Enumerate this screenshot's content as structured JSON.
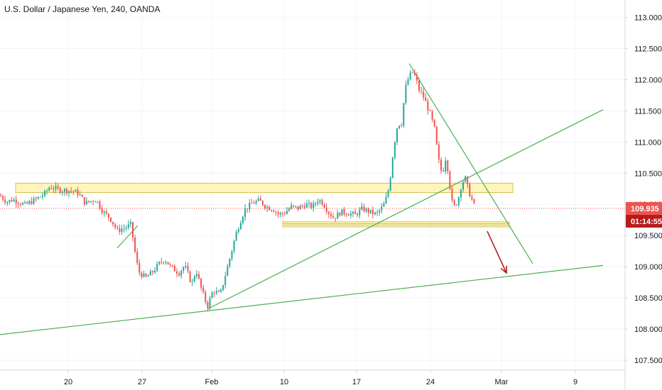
{
  "chart_data": {
    "type": "candlestick",
    "title": "U.S. Dollar / Japanese Yen, 240, OANDA",
    "y_axis": {
      "ylim": [
        107.34,
        113.28
      ],
      "ticks": [
        "113.000",
        "112.500",
        "112.000",
        "111.500",
        "111.000",
        "110.500",
        "110.000",
        "109.500",
        "109.000",
        "108.500",
        "108.000",
        "107.500"
      ],
      "tick_values": [
        113.0,
        112.5,
        112.0,
        111.5,
        111.0,
        110.5,
        110.0,
        109.5,
        109.0,
        108.5,
        108.0,
        107.5
      ],
      "position": "right"
    },
    "x_axis": {
      "labels": [
        "20",
        "27",
        "Feb",
        "10",
        "17",
        "24",
        "Mar",
        "9"
      ],
      "label_bars": [
        96,
        200,
        298,
        400,
        502,
        606,
        706,
        810
      ]
    },
    "current_price": {
      "price_label": "109.935",
      "countdown_label": "01:14:55",
      "value": 109.935
    },
    "colors": {
      "up": "#26a69a",
      "down": "#ef5350",
      "trendline": "#4caf50",
      "zone_fill": "#fff3b0",
      "zone_border": "#d4c24a",
      "arrow": "#b71c1c",
      "current_price_line": "#ef5350",
      "countdown_badge": "#b71c1c"
    },
    "anchors": [
      [
        0,
        110.14
      ],
      [
        10,
        110.04
      ],
      [
        18,
        110.08
      ],
      [
        35,
        109.99
      ],
      [
        50,
        110.08
      ],
      [
        62,
        110.16
      ],
      [
        70,
        110.28
      ],
      [
        85,
        110.23
      ],
      [
        100,
        110.22
      ],
      [
        110,
        110.18
      ],
      [
        120,
        110.02
      ],
      [
        135,
        110.08
      ],
      [
        145,
        109.88
      ],
      [
        155,
        109.78
      ],
      [
        165,
        109.58
      ],
      [
        175,
        109.62
      ],
      [
        185,
        109.68
      ],
      [
        188,
        109.37
      ],
      [
        195,
        108.92
      ],
      [
        205,
        108.82
      ],
      [
        215,
        108.92
      ],
      [
        225,
        109.06
      ],
      [
        232,
        109.12
      ],
      [
        240,
        109.0
      ],
      [
        252,
        108.9
      ],
      [
        260,
        109.02
      ],
      [
        270,
        108.72
      ],
      [
        276,
        108.95
      ],
      [
        284,
        108.62
      ],
      [
        292,
        108.36
      ],
      [
        300,
        108.62
      ],
      [
        310,
        108.55
      ],
      [
        318,
        108.9
      ],
      [
        325,
        109.2
      ],
      [
        332,
        109.52
      ],
      [
        338,
        109.72
      ],
      [
        345,
        109.92
      ],
      [
        355,
        110.02
      ],
      [
        365,
        110.06
      ],
      [
        375,
        109.96
      ],
      [
        385,
        109.92
      ],
      [
        392,
        109.84
      ],
      [
        400,
        109.86
      ],
      [
        410,
        109.96
      ],
      [
        420,
        109.94
      ],
      [
        430,
        110.0
      ],
      [
        440,
        109.96
      ],
      [
        448,
        110.08
      ],
      [
        455,
        110.02
      ],
      [
        462,
        109.88
      ],
      [
        470,
        109.78
      ],
      [
        480,
        109.88
      ],
      [
        490,
        109.86
      ],
      [
        500,
        109.83
      ],
      [
        510,
        109.93
      ],
      [
        520,
        109.88
      ],
      [
        530,
        109.84
      ],
      [
        540,
        109.98
      ],
      [
        546,
        110.18
      ],
      [
        550,
        110.48
      ],
      [
        554,
        110.9
      ],
      [
        560,
        111.3
      ],
      [
        565,
        111.28
      ],
      [
        568,
        111.6
      ],
      [
        572,
        111.94
      ],
      [
        576,
        112.04
      ],
      [
        580,
        112.14
      ],
      [
        585,
        112.04
      ],
      [
        590,
        111.84
      ],
      [
        595,
        111.76
      ],
      [
        600,
        111.62
      ],
      [
        606,
        111.44
      ],
      [
        612,
        111.2
      ],
      [
        616,
        110.82
      ],
      [
        620,
        110.54
      ],
      [
        624,
        110.56
      ],
      [
        628,
        110.78
      ],
      [
        632,
        110.42
      ],
      [
        636,
        110.04
      ],
      [
        640,
        109.96
      ],
      [
        645,
        110.08
      ],
      [
        650,
        110.34
      ],
      [
        655,
        110.42
      ],
      [
        660,
        110.2
      ],
      [
        665,
        110.06
      ],
      [
        670,
        109.9
      ]
    ],
    "zones": [
      {
        "x1": 22,
        "x2": 722,
        "y1": 110.19,
        "y2": 110.34
      },
      {
        "x1": 398,
        "x2": 717,
        "y1": 109.64,
        "y2": 109.67
      },
      {
        "x1": 398,
        "x2": 717,
        "y1": 109.69,
        "y2": 109.72
      }
    ],
    "trendlines": [
      {
        "x1": 0,
        "y1": 107.91,
        "x2": 849,
        "y2": 109.02
      },
      {
        "x1": 292,
        "y1": 108.32,
        "x2": 849,
        "y2": 111.52
      },
      {
        "x1": 576,
        "y1": 112.26,
        "x2": 750,
        "y2": 109.05
      },
      {
        "x1": 165,
        "y1": 109.3,
        "x2": 194,
        "y2": 109.66
      }
    ],
    "arrow": {
      "x1": 686,
      "y1": 109.57,
      "x2": 713,
      "y2": 108.9
    }
  }
}
